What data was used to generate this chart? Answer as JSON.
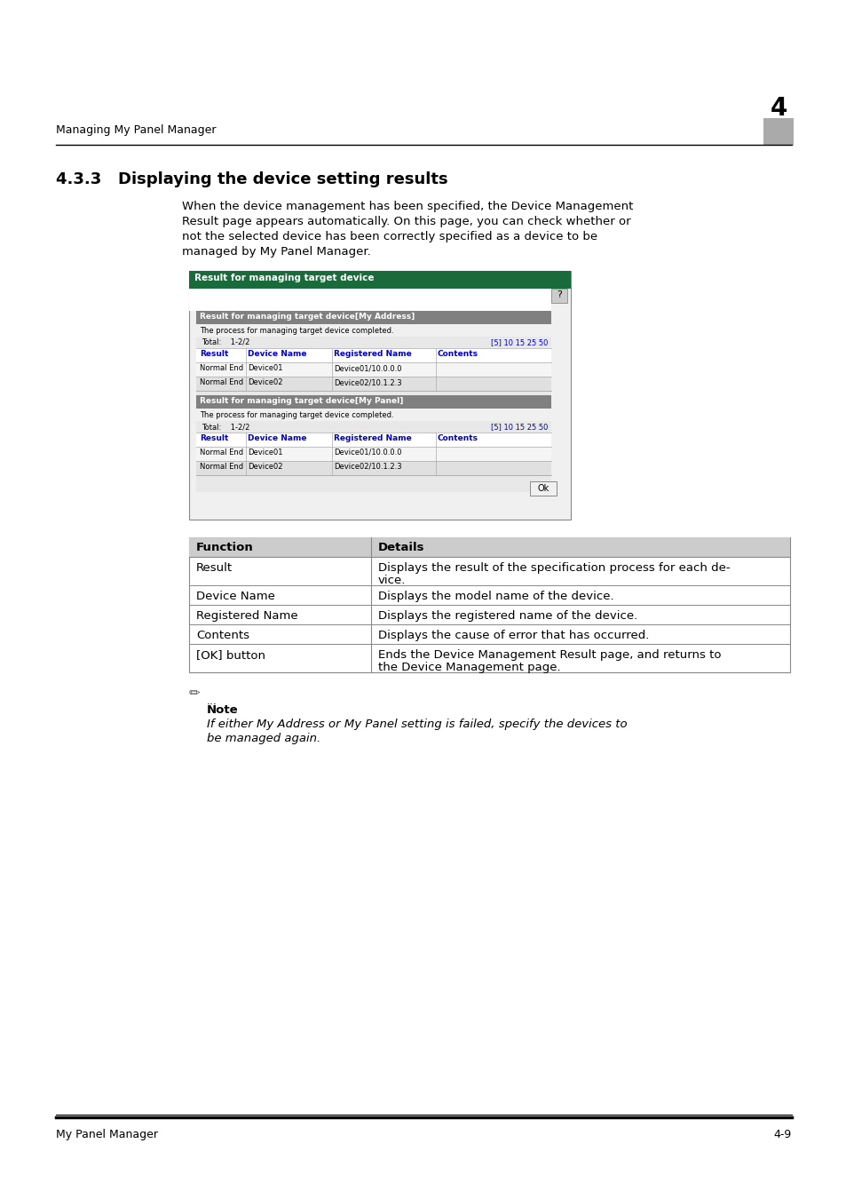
{
  "page_bg": "#ffffff",
  "header_text": "Managing My Panel Manager",
  "header_num": "4",
  "section_title": "4.3.3   Displaying the device setting results",
  "body_text": "When the device management has been specified, the Device Management\nResult page appears automatically. On this page, you can check whether or\nnot the selected device has been correctly specified as a device to be\nmanaged by My Panel Manager.",
  "screenshot_title": "Result for managing target device",
  "screenshot_header1": "Result for managing target device[My Address]",
  "screenshot_process1": "The process for managing target device completed.",
  "screenshot_total1": "Total:    1-2/2",
  "screenshot_pagination": "[5] 10 15 25 50",
  "screenshot_col_headers": [
    "Result",
    "Device Name",
    "Registered Name",
    "Contents"
  ],
  "screenshot_rows1": [
    [
      "Normal End",
      "Device01",
      "Device01/10.0.0.0",
      ""
    ],
    [
      "Normal End",
      "Device02",
      "Device02/10.1.2.3",
      ""
    ]
  ],
  "screenshot_header2": "Result for managing target device[My Panel]",
  "screenshot_process2": "The process for managing target device completed.",
  "screenshot_total2": "Total:    1-2/2",
  "screenshot_rows2": [
    [
      "Normal End",
      "Device01",
      "Device01/10.0.0.0",
      ""
    ],
    [
      "Normal End",
      "Device02",
      "Device02/10.1.2.3",
      ""
    ]
  ],
  "table_headers": [
    "Function",
    "Details"
  ],
  "table_rows": [
    [
      "Result",
      "Displays the result of the specification process for each de-\nvice."
    ],
    [
      "Device Name",
      "Displays the model name of the device."
    ],
    [
      "Registered Name",
      "Displays the registered name of the device."
    ],
    [
      "Contents",
      "Displays the cause of error that has occurred."
    ],
    [
      "[OK] button",
      "Ends the Device Management Result page, and returns to\nthe Device Management page."
    ]
  ],
  "note_dots": "...",
  "note_label": "Note",
  "note_text": "If either My Address or My Panel setting is failed, specify the devices to\nbe managed again.",
  "footer_left": "My Panel Manager",
  "footer_right": "4-9",
  "dark_green": "#1a6b3c",
  "gray_header_bg": "#808080",
  "light_content_bg": "#e8e8e8",
  "blue_link": "#0000cc",
  "table_header_bg": "#cccccc"
}
